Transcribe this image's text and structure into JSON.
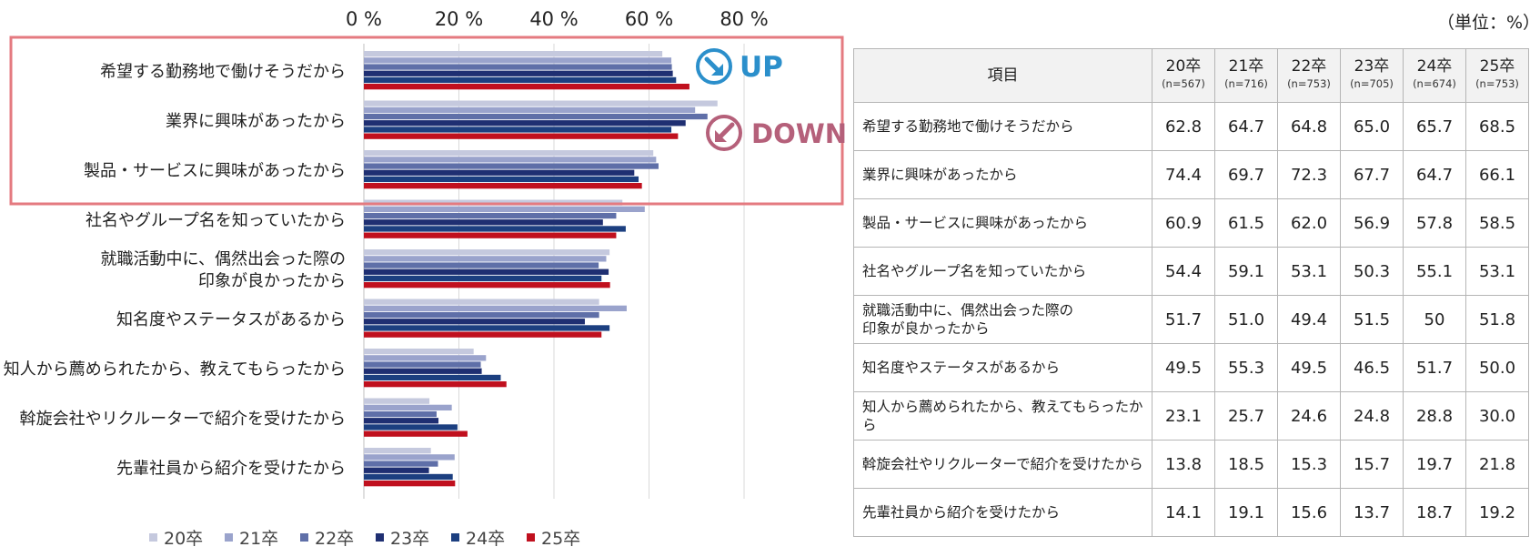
{
  "unit_note": "（単位：%）",
  "callouts": {
    "up": "UP",
    "down": "DOWN"
  },
  "table": {
    "header_label": "項目",
    "years": [
      {
        "label": "20卒",
        "n": "(n=567)"
      },
      {
        "label": "21卒",
        "n": "(n=716)"
      },
      {
        "label": "22卒",
        "n": "(n=753)"
      },
      {
        "label": "23卒",
        "n": "(n=705)"
      },
      {
        "label": "24卒",
        "n": "(n=674)"
      },
      {
        "label": "25卒",
        "n": "(n=753)"
      }
    ],
    "rows": [
      {
        "label": "希望する勤務地で働けそうだから",
        "values": [
          "62.8",
          "64.7",
          "64.8",
          "65.0",
          "65.7",
          "68.5"
        ]
      },
      {
        "label": "業界に興味があったから",
        "values": [
          "74.4",
          "69.7",
          "72.3",
          "67.7",
          "64.7",
          "66.1"
        ]
      },
      {
        "label": "製品・サービスに興味があったから",
        "values": [
          "60.9",
          "61.5",
          "62.0",
          "56.9",
          "57.8",
          "58.5"
        ]
      },
      {
        "label": "社名やグループ名を知っていたから",
        "values": [
          "54.4",
          "59.1",
          "53.1",
          "50.3",
          "55.1",
          "53.1"
        ]
      },
      {
        "label": "就職活動中に、偶然出会った際の印象が良かったから",
        "values": [
          "51.7",
          "51.0",
          "49.4",
          "51.5",
          "50",
          "51.8"
        ]
      },
      {
        "label": "知名度やステータスがあるから",
        "values": [
          "49.5",
          "55.3",
          "49.5",
          "46.5",
          "51.7",
          "50.0"
        ]
      },
      {
        "label": "知人から薦められたから、教えてもらったから",
        "values": [
          "23.1",
          "25.7",
          "24.6",
          "24.8",
          "28.8",
          "30.0"
        ]
      },
      {
        "label": "斡旋会社やリクルーターで紹介を受けたから",
        "values": [
          "13.8",
          "18.5",
          "15.3",
          "15.7",
          "19.7",
          "21.8"
        ]
      },
      {
        "label": "先輩社員から紹介を受けたから",
        "values": [
          "14.1",
          "19.1",
          "15.6",
          "13.7",
          "18.7",
          "19.2"
        ]
      }
    ]
  },
  "chart_data": {
    "type": "bar",
    "orientation": "horizontal",
    "categories": [
      [
        "希望する勤務地で働けそうだから"
      ],
      [
        "業界に興味があったから"
      ],
      [
        "製品・サービスに興味があったから"
      ],
      [
        "社名やグループ名を知っていたから"
      ],
      [
        "就職活動中に、偶然出会った際の",
        "印象が良かったから"
      ],
      [
        "知名度やステータスがあるから"
      ],
      [
        "知人から薦められたから、教えてもらったから"
      ],
      [
        "斡旋会社やリクルーターで紹介を受けたから"
      ],
      [
        "先輩社員から紹介を受けたから"
      ]
    ],
    "series": [
      {
        "name": "20卒",
        "color": "#c5c9de",
        "values": [
          62.8,
          74.4,
          60.9,
          54.4,
          51.7,
          49.5,
          23.1,
          13.8,
          14.1
        ]
      },
      {
        "name": "21卒",
        "color": "#9aa3cc",
        "values": [
          64.7,
          69.7,
          61.5,
          59.1,
          51.0,
          55.3,
          25.7,
          18.5,
          19.1
        ]
      },
      {
        "name": "22卒",
        "color": "#5f6fa8",
        "values": [
          64.8,
          72.3,
          62.0,
          53.1,
          49.4,
          49.5,
          24.6,
          15.3,
          15.6
        ]
      },
      {
        "name": "23卒",
        "color": "#1f2f72",
        "values": [
          65.0,
          67.7,
          56.9,
          50.3,
          51.5,
          46.5,
          24.8,
          15.7,
          13.7
        ]
      },
      {
        "name": "24卒",
        "color": "#1c3f80",
        "values": [
          65.7,
          64.7,
          57.8,
          55.1,
          50.0,
          51.7,
          28.8,
          19.7,
          18.7
        ]
      },
      {
        "name": "25卒",
        "color": "#c0101e",
        "values": [
          68.5,
          66.1,
          58.5,
          53.1,
          51.8,
          50.0,
          30.0,
          21.8,
          19.2
        ]
      }
    ],
    "xlim": [
      0,
      80
    ],
    "xticks": [
      "0 %",
      "20 %",
      "40 %",
      "60 %",
      "80 %"
    ],
    "grid": true,
    "legend_position": "bottom",
    "highlight_color": "#e47a80",
    "up_color": "#2b8fcb",
    "down_color": "#b5607a"
  }
}
